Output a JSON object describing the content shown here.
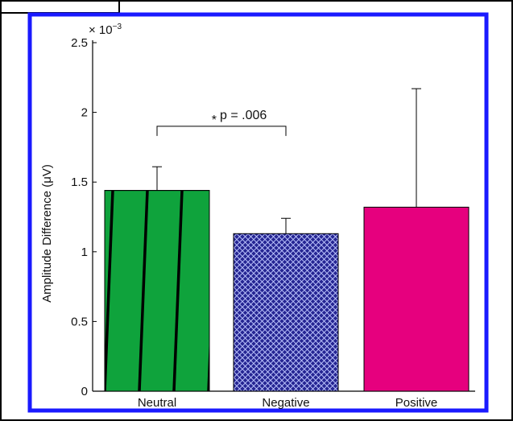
{
  "colors": {
    "frame": "#1a1aff",
    "outer_border": "#000000",
    "neutral_bar": "#0fa33c",
    "neutral_stripe": "#000000",
    "negative_bar": "#262693",
    "negative_pattern": "#bfc7ff",
    "positive_bar": "#e6007e"
  },
  "chart_data": {
    "type": "bar",
    "categories": [
      "Neutral",
      "Negative",
      "Positive"
    ],
    "values": [
      1.44,
      1.13,
      1.32
    ],
    "errors_upper": [
      1.61,
      1.24,
      2.17
    ],
    "ylabel": "Amplitude Difference (μV)",
    "xlabel": "",
    "y_multiplier": "× 10",
    "y_multiplier_exponent": "−3",
    "ylim": [
      0,
      2.5
    ],
    "yticks": [
      "0",
      "0.5",
      "1",
      "1.5",
      "2",
      "2.5"
    ],
    "ytick_values": [
      0,
      0.5,
      1,
      1.5,
      2,
      2.5
    ],
    "annotation": {
      "star": "*",
      "text": "p = .006",
      "between": [
        "Neutral",
        "Negative"
      ],
      "y": 1.9
    },
    "grid": false
  }
}
